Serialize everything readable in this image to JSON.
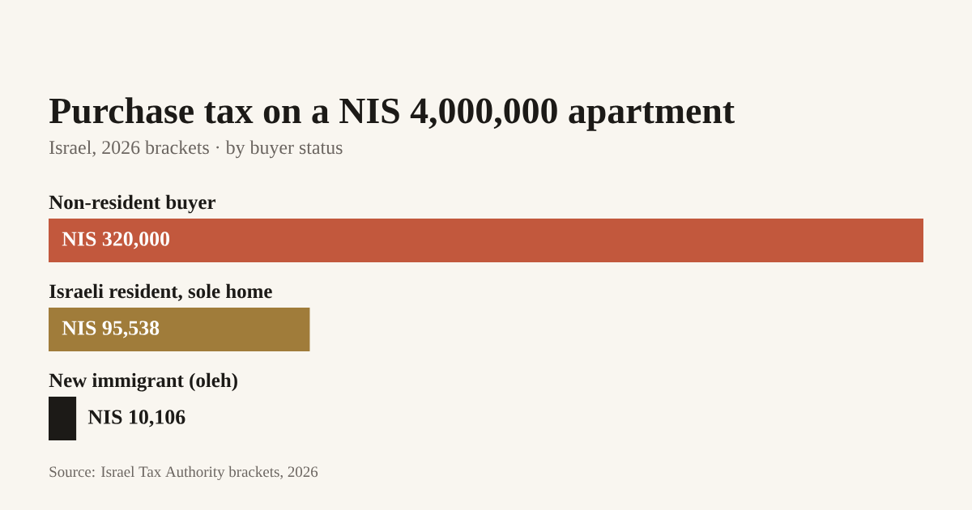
{
  "chart_data": {
    "type": "bar",
    "orientation": "horizontal",
    "title": "Purchase tax on a NIS 4,000,000 apartment",
    "subtitle": "Israel, 2026 brackets · by buyer status",
    "categories": [
      "Non-resident buyer",
      "Israeli resident, sole home",
      "New immigrant (oleh)"
    ],
    "values": [
      320000,
      95538,
      10106
    ],
    "colors": [
      "#c2583d",
      "#a07c3a",
      "#1c1a17"
    ],
    "value_labels": [
      "NIS 320,000",
      "NIS 95,538",
      "NIS 10,106"
    ],
    "xlim": [
      0,
      320000
    ],
    "annotations": [
      "Source: Israel Tax Authority brackets, 2026"
    ]
  }
}
